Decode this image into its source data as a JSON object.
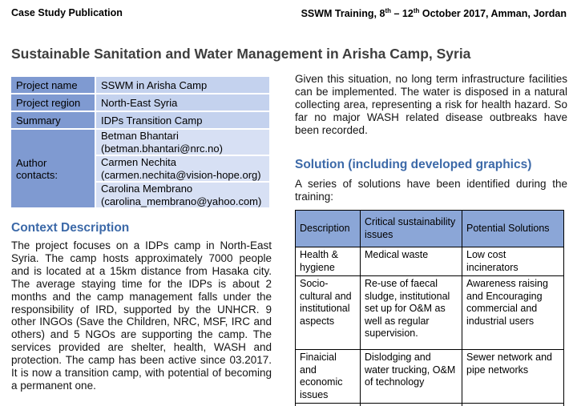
{
  "header": {
    "left": "Case Study Publication",
    "right": {
      "part1": "SSWM Training, 8",
      "sup1": "th",
      "part2": " – 12",
      "sup2": "th",
      "part3": " October 2017, Amman, Jordan"
    }
  },
  "title": "Sustainable Sanitation and Water Management in Arisha Camp, Syria",
  "info_table": {
    "rows": [
      {
        "label": "Project name",
        "value": "SSWM in Arisha Camp"
      },
      {
        "label": "Project region",
        "value": "North-East Syria"
      },
      {
        "label": "Summary",
        "value": "IDPs Transition Camp"
      }
    ],
    "authors_label": "Author contacts:",
    "authors": [
      {
        "name": "Betman Bhantari",
        "email": "(betman.bhantari@nrc.no)"
      },
      {
        "name": "Carmen Nechita",
        "email": "(carmen.nechita@vision-hope.org)"
      },
      {
        "name": "Carolina Membrano",
        "email": "(carolina_membrano@yahoo.com)"
      }
    ]
  },
  "context": {
    "heading": "Context Description",
    "paragraph": "The project focuses on a IDPs camp in North-East Syria. The camp hosts approximately 7000 people and is located at a 15km distance from Hasaka city. The average staying time for the IDPs is about 2 months and the camp management falls under the responsibility of IRD, supported by the UNHCR. 9 other INGOs (Save the Children, NRC, MSF, IRC and others) and 5 NGOs are supporting the camp. The services provided are shelter, health, WASH and protection. The camp has been active since 03.2017. It is now a transition camp, with potential of becoming a permanent one."
  },
  "situation": {
    "paragraph": "Given this situation, no long term infrastructure facilities can be implemented. The water is disposed in a natural collecting area, representing a risk for health hazard. So far no major WASH related disease outbreaks have been recorded."
  },
  "solution": {
    "heading": "Solution (including developed graphics)",
    "intro": "A series of solutions have been identified during the training:",
    "table": {
      "headers": [
        "Description",
        "Critical sustainability issues",
        "Potential Solutions"
      ],
      "rows": [
        {
          "description": "Health & hygiene",
          "issues": "Medical waste",
          "solutions": "Low cost incinerators"
        },
        {
          "description": "Socio-cultural and institutional aspects",
          "issues": "Re-use of faecal sludge, institutional set up for O&M as well as regular supervision.",
          "solutions": "Awareness raising and Encouraging commercial and industrial users"
        },
        {
          "description": "Finaicial and economic issues",
          "issues": "Dislodging and water trucking, O&M of technology",
          "solutions": "Sewer network and pipe networks"
        }
      ]
    }
  },
  "colors": {
    "heading_blue": "#3c69a8",
    "info_label_bg": "#7f9ad1",
    "info_value_bg": "#c4d2ee",
    "info_author_bg": "#d7e0f4",
    "solution_header_bg": "#8ba6d7",
    "title_gray": "#3e3e3e"
  }
}
